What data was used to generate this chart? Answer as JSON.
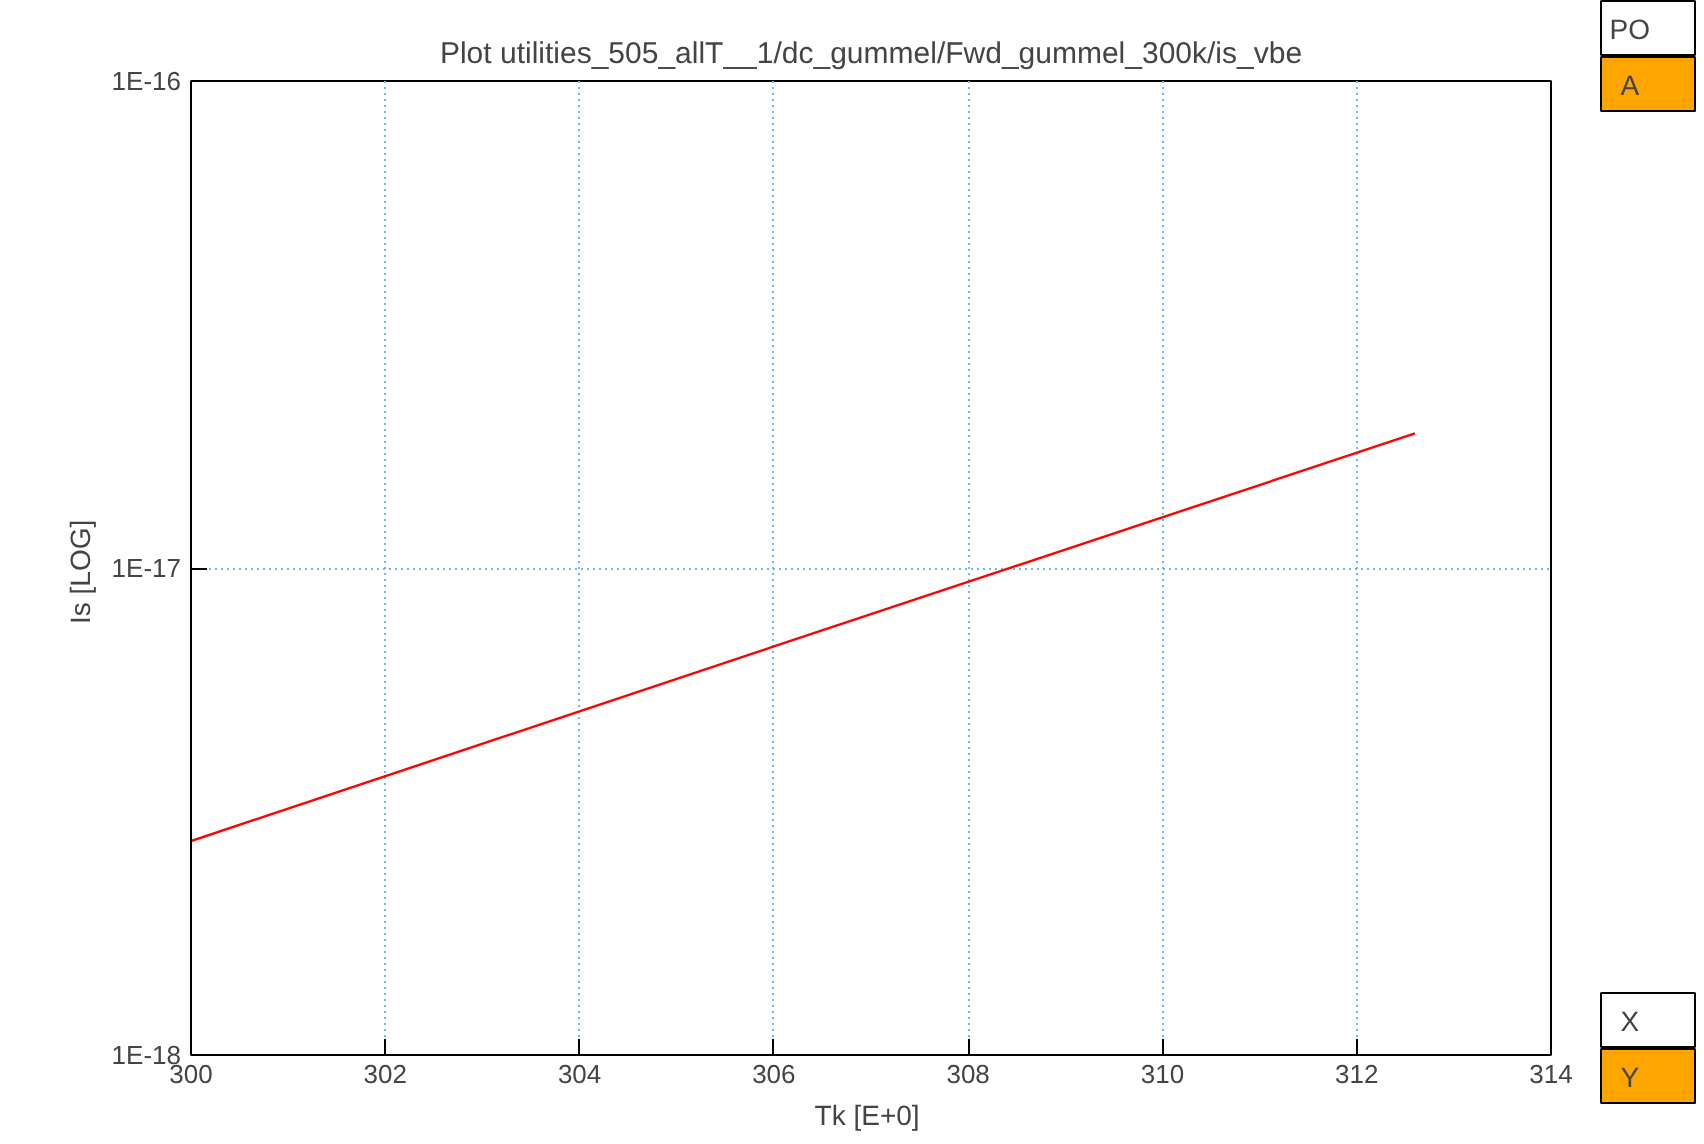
{
  "chart_data": {
    "type": "line",
    "title": "Plot utilities_505_allT__1/dc_gummel/Fwd_gummel_300k/is_vbe",
    "xlabel": "Tk  [E+0]",
    "ylabel": "Is  [LOG]",
    "x": [
      300,
      306,
      312.6
    ],
    "series": [
      {
        "color": "#ff0000",
        "values": [
          2.75e-18,
          6.9e-18,
          1.89e-17
        ]
      }
    ],
    "log": "y",
    "xlim": [
      300,
      314
    ],
    "ylim": [
      1e-18,
      1e-16
    ],
    "xticks": [
      300,
      302,
      304,
      306,
      308,
      310,
      312,
      314
    ],
    "yticks": [
      {
        "value": 1e-18,
        "label": "1E-18"
      },
      {
        "value": 1e-17,
        "label": "1E-17"
      },
      {
        "value": 1e-16,
        "label": "1E-16"
      }
    ],
    "grid": true,
    "annotations": [
      "PO",
      "A",
      "X",
      "Y"
    ]
  }
}
